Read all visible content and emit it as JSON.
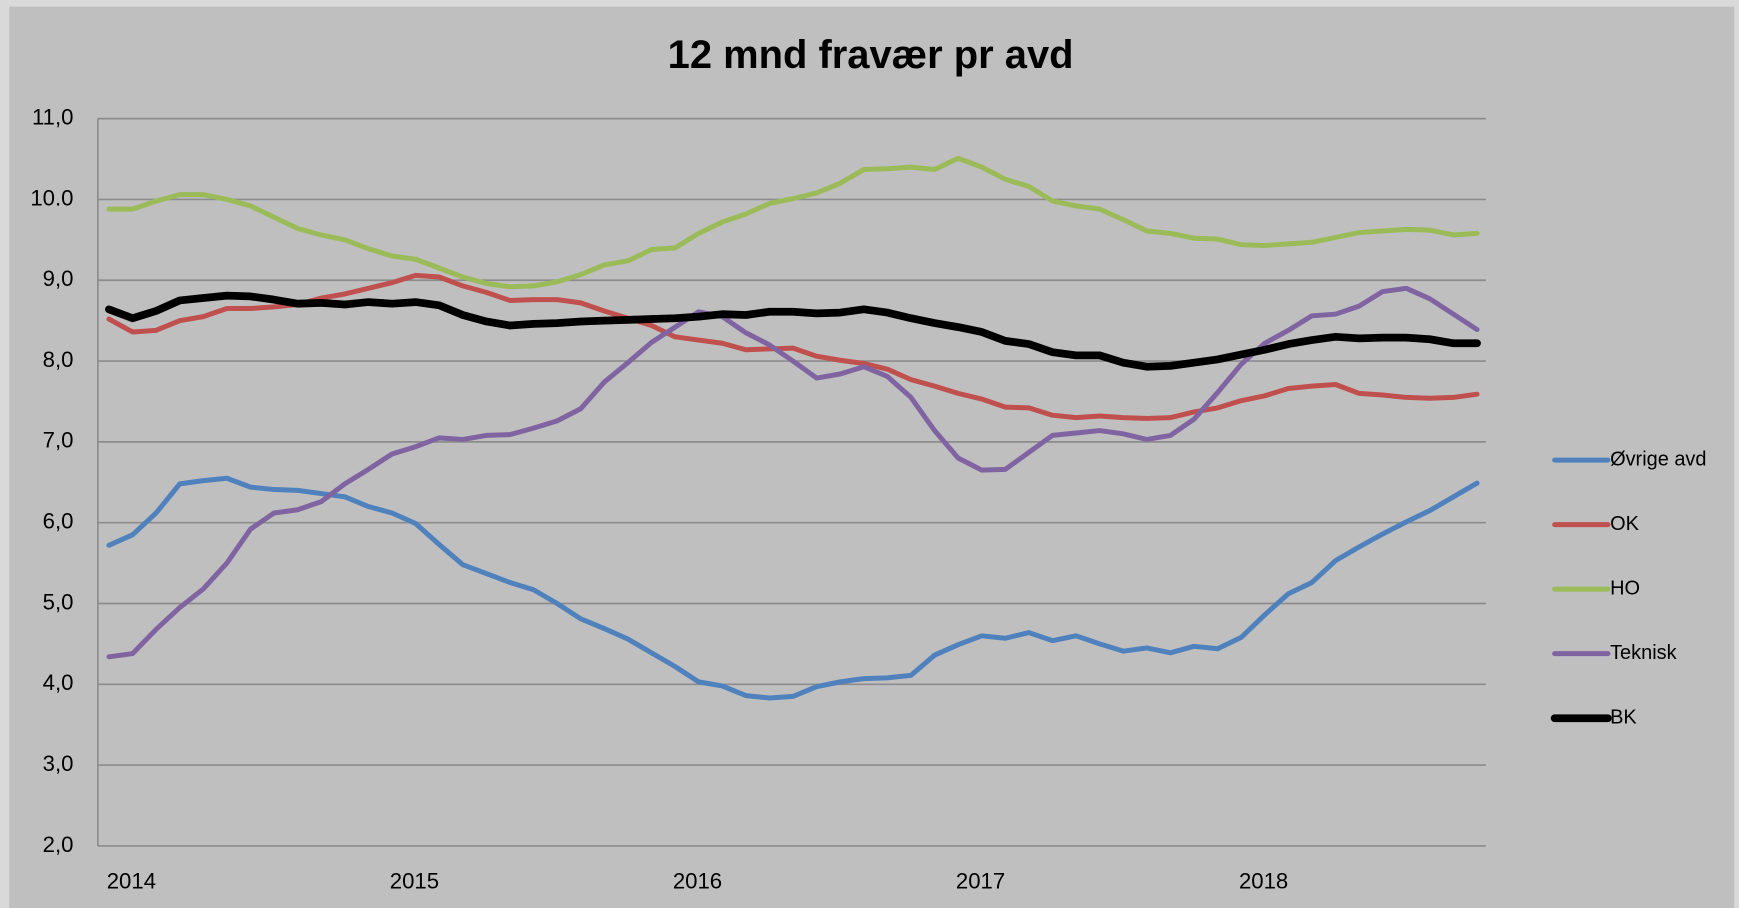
{
  "chart_data": {
    "type": "line",
    "title": "12 mnd fravær pr avd",
    "categories": [
      "2014",
      null,
      null,
      null,
      null,
      null,
      null,
      null,
      null,
      null,
      null,
      null,
      "2015",
      null,
      null,
      null,
      null,
      null,
      null,
      null,
      null,
      null,
      null,
      null,
      "2016",
      null,
      null,
      null,
      null,
      null,
      null,
      null,
      null,
      null,
      null,
      null,
      "2017",
      null,
      null,
      null,
      null,
      null,
      null,
      null,
      null,
      null,
      null,
      null,
      "2018",
      null,
      null,
      null,
      null,
      null,
      null,
      null,
      null,
      null,
      null
    ],
    "ylim": [
      2,
      11
    ],
    "yticks": [
      {
        "value": 2,
        "label": "2,0"
      },
      {
        "value": 3,
        "label": "3,0"
      },
      {
        "value": 4,
        "label": "4,0"
      },
      {
        "value": 5,
        "label": "5,0"
      },
      {
        "value": 6,
        "label": "6,0"
      },
      {
        "value": 7,
        "label": "7,0"
      },
      {
        "value": 8,
        "label": "8,0"
      },
      {
        "value": 9,
        "label": "9,0"
      },
      {
        "value": 10,
        "label": "10.0"
      },
      {
        "value": 11,
        "label": "11,0"
      }
    ],
    "grid": true,
    "legend": "right",
    "series": [
      {
        "name": "Øvrige avd",
        "color": "#4f81bd",
        "values": [
          5.72,
          5.85,
          6.12,
          6.48,
          6.52,
          6.55,
          6.44,
          6.41,
          6.4,
          6.36,
          6.32,
          6.2,
          6.12,
          5.99,
          5.73,
          5.48,
          5.37,
          5.26,
          5.17,
          5.0,
          4.81,
          4.69,
          4.56,
          4.39,
          4.22,
          4.03,
          3.98,
          3.86,
          3.83,
          3.85,
          3.97,
          4.03,
          4.07,
          4.08,
          4.11,
          4.36,
          4.49,
          4.6,
          4.57,
          4.64,
          4.54,
          4.6,
          4.5,
          4.41,
          4.45,
          4.39,
          4.47,
          4.44,
          4.58,
          4.86,
          5.12,
          5.26,
          5.53,
          5.7,
          5.86,
          6.01,
          6.15,
          6.32,
          6.49
        ]
      },
      {
        "name": "OK",
        "color": "#c0504d",
        "values": [
          8.52,
          8.36,
          8.38,
          8.5,
          8.55,
          8.65,
          8.65,
          8.67,
          8.7,
          8.78,
          8.83,
          8.9,
          8.97,
          9.06,
          9.04,
          8.93,
          8.85,
          8.75,
          8.76,
          8.76,
          8.72,
          8.62,
          8.53,
          8.44,
          8.3,
          8.26,
          8.22,
          8.14,
          8.15,
          8.16,
          8.06,
          8.01,
          7.97,
          7.9,
          7.77,
          7.69,
          7.6,
          7.53,
          7.43,
          7.42,
          7.33,
          7.3,
          7.32,
          7.3,
          7.29,
          7.3,
          7.37,
          7.42,
          7.51,
          7.57,
          7.66,
          7.69,
          7.71,
          7.6,
          7.58,
          7.55,
          7.54,
          7.55,
          7.59
        ]
      },
      {
        "name": "HO",
        "color": "#9bbb59",
        "values": [
          9.88,
          9.88,
          9.98,
          10.06,
          10.06,
          10.0,
          9.92,
          9.78,
          9.64,
          9.56,
          9.5,
          9.39,
          9.3,
          9.26,
          9.15,
          9.04,
          8.96,
          8.92,
          8.93,
          8.98,
          9.07,
          9.19,
          9.24,
          9.38,
          9.4,
          9.58,
          9.72,
          9.82,
          9.95,
          10.01,
          10.08,
          10.2,
          10.37,
          10.38,
          10.4,
          10.37,
          10.51,
          10.4,
          10.25,
          10.16,
          9.98,
          9.92,
          9.88,
          9.75,
          9.61,
          9.58,
          9.52,
          9.51,
          9.44,
          9.43,
          9.45,
          9.47,
          9.53,
          9.59,
          9.61,
          9.63,
          9.62,
          9.56,
          9.58
        ]
      },
      {
        "name": "Teknisk",
        "color": "#8064a2",
        "values": [
          4.34,
          4.38,
          4.68,
          4.95,
          5.18,
          5.5,
          5.92,
          6.12,
          6.16,
          6.26,
          6.48,
          6.66,
          6.85,
          6.94,
          7.05,
          7.03,
          7.08,
          7.09,
          7.17,
          7.26,
          7.41,
          7.74,
          7.98,
          8.23,
          8.42,
          8.61,
          8.55,
          8.35,
          8.2,
          8.0,
          7.79,
          7.84,
          7.93,
          7.81,
          7.55,
          7.14,
          6.8,
          6.65,
          6.66,
          6.87,
          7.08,
          7.11,
          7.14,
          7.1,
          7.03,
          7.08,
          7.28,
          7.61,
          7.96,
          8.22,
          8.38,
          8.56,
          8.58,
          8.68,
          8.86,
          8.9,
          8.77,
          8.58,
          8.39
        ]
      },
      {
        "name": "BK",
        "color": "#000000",
        "values": [
          8.64,
          8.53,
          8.62,
          8.75,
          8.78,
          8.81,
          8.8,
          8.76,
          8.71,
          8.72,
          8.7,
          8.73,
          8.71,
          8.73,
          8.69,
          8.57,
          8.49,
          8.44,
          8.46,
          8.47,
          8.49,
          8.5,
          8.51,
          8.52,
          8.53,
          8.55,
          8.58,
          8.57,
          8.61,
          8.61,
          8.59,
          8.6,
          8.64,
          8.6,
          8.53,
          8.47,
          8.42,
          8.36,
          8.25,
          8.21,
          8.11,
          8.07,
          8.07,
          7.98,
          7.93,
          7.94,
          7.98,
          8.02,
          8.08,
          8.14,
          8.21,
          8.26,
          8.3,
          8.28,
          8.29,
          8.29,
          8.27,
          8.22,
          8.22
        ]
      }
    ]
  }
}
